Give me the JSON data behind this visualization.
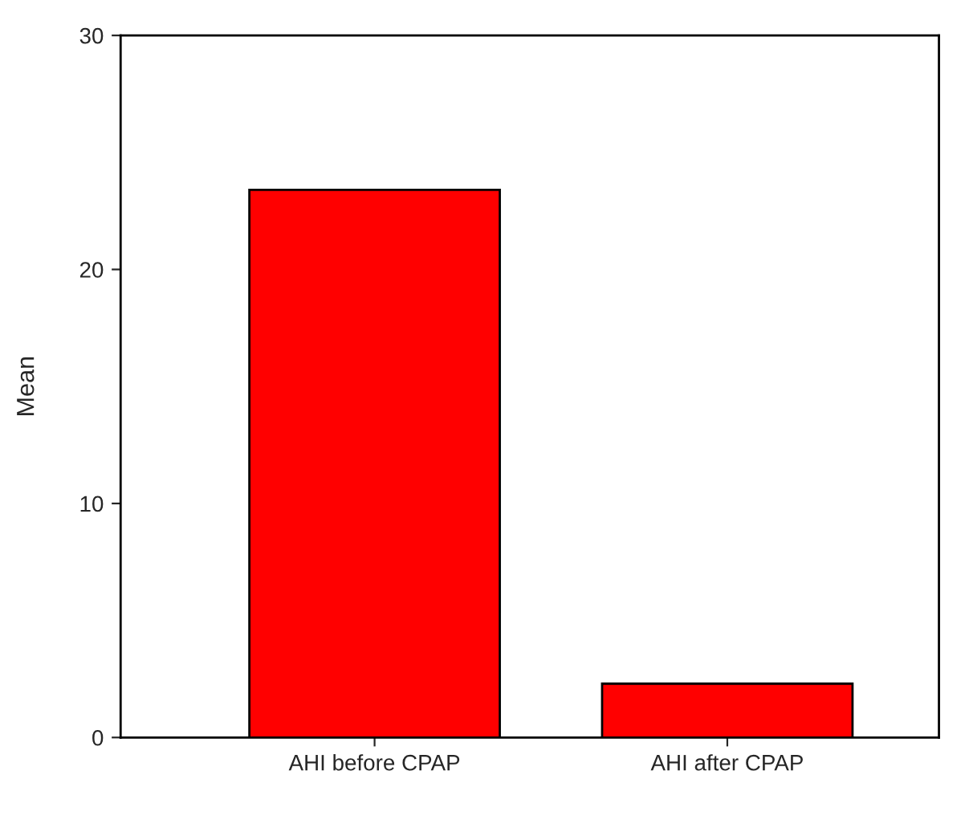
{
  "chart_data": {
    "type": "bar",
    "ylabel": "Mean",
    "categories": [
      "AHI before CPAP",
      "AHI after CPAP"
    ],
    "values": [
      23.4,
      2.3
    ],
    "color": "#ff0000",
    "ylim": [
      0,
      30
    ],
    "yticks": [
      0,
      10,
      20,
      30
    ],
    "grid": false,
    "legend": false
  }
}
